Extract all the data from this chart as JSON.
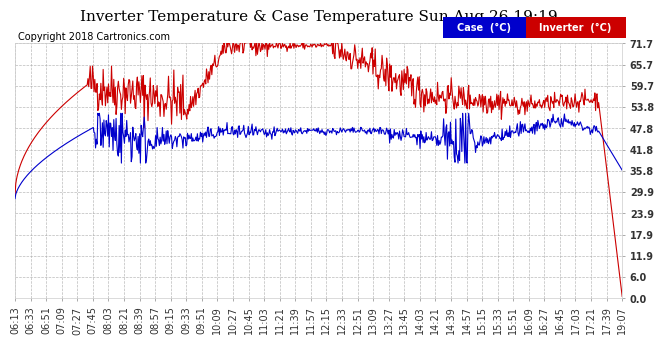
{
  "title": "Inverter Temperature & Case Temperature Sun Aug 26 19:19",
  "copyright": "Copyright 2018 Cartronics.com",
  "yticks": [
    0.0,
    6.0,
    11.9,
    17.9,
    23.9,
    29.9,
    35.8,
    41.8,
    47.8,
    53.8,
    59.7,
    65.7,
    71.7
  ],
  "ylim": [
    0.0,
    71.7
  ],
  "background_color": "#ffffff",
  "grid_color": "#aaaaaa",
  "case_color": "#0000cc",
  "inverter_color": "#cc0000",
  "legend_case_bg": "#0000cc",
  "legend_inverter_bg": "#cc0000",
  "title_fontsize": 11,
  "tick_fontsize": 7,
  "copyright_fontsize": 7,
  "xtick_labels": [
    "06:13",
    "06:33",
    "06:51",
    "07:09",
    "07:27",
    "07:45",
    "08:03",
    "08:21",
    "08:39",
    "08:57",
    "09:15",
    "09:33",
    "09:51",
    "10:09",
    "10:27",
    "10:45",
    "11:03",
    "11:21",
    "11:39",
    "11:57",
    "12:15",
    "12:33",
    "12:51",
    "13:09",
    "13:27",
    "13:45",
    "14:03",
    "14:21",
    "14:39",
    "14:57",
    "15:15",
    "15:33",
    "15:51",
    "16:09",
    "16:27",
    "16:45",
    "17:03",
    "17:21",
    "17:39",
    "19:07"
  ]
}
